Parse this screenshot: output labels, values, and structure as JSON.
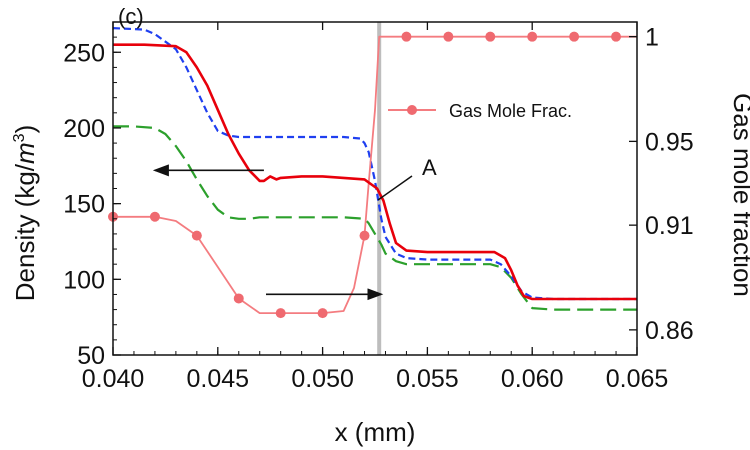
{
  "chart_data": {
    "type": "line",
    "panel_label": "(c)",
    "xlabel": "x (mm)",
    "ylabel_prefix": "Density (kg/",
    "ylabel_unit": "m",
    "ylabel_exp": "3",
    "ylabel_suffix": ")",
    "y2label": "Gas mole fraction",
    "xlim": [
      0.04,
      0.065
    ],
    "ylim": [
      50,
      270
    ],
    "y2lim": [
      0.848,
      1.007
    ],
    "x_ticks": [
      "0.040",
      "0.045",
      "0.050",
      "0.055",
      "0.060",
      "0.065"
    ],
    "y_ticks": [
      "50",
      "100",
      "150",
      "200",
      "250"
    ],
    "y2_ticks": [
      "0.86",
      "0.91",
      "0.95",
      "1"
    ],
    "grid": false,
    "legend": {
      "position": "upper-right",
      "entries": [
        "Gas Mole Frac."
      ]
    },
    "annotation_label": "A",
    "vertical_line_x": 0.0527,
    "series": [
      {
        "style": "solid",
        "color": "#e8000b",
        "axis": "left",
        "x": [
          0.04,
          0.0415,
          0.043,
          0.0435,
          0.044,
          0.0445,
          0.045,
          0.0455,
          0.046,
          0.0465,
          0.047,
          0.0472,
          0.0475,
          0.0478,
          0.048,
          0.049,
          0.05,
          0.051,
          0.052,
          0.0523,
          0.0526,
          0.0529,
          0.0532,
          0.0535,
          0.054,
          0.055,
          0.056,
          0.057,
          0.0582,
          0.0587,
          0.059,
          0.0593,
          0.0596,
          0.06,
          0.061,
          0.062,
          0.063,
          0.064,
          0.065
        ],
        "y": [
          255,
          255,
          254,
          250,
          240,
          228,
          212,
          196,
          183,
          172,
          165,
          165,
          168,
          166,
          167,
          168,
          168,
          167,
          166,
          163,
          160,
          152,
          137,
          124,
          119,
          118,
          118,
          118,
          118,
          114,
          106,
          96,
          89,
          87,
          87,
          87,
          87,
          87,
          87
        ]
      },
      {
        "style": "dash",
        "color": "#1f3ff0",
        "axis": "left",
        "x": [
          0.04,
          0.0415,
          0.042,
          0.043,
          0.0435,
          0.044,
          0.0445,
          0.045,
          0.0455,
          0.046,
          0.0465,
          0.047,
          0.048,
          0.049,
          0.05,
          0.051,
          0.0518,
          0.052,
          0.0522,
          0.0525,
          0.0528,
          0.053,
          0.0535,
          0.054,
          0.055,
          0.056,
          0.057,
          0.058,
          0.0585,
          0.059,
          0.0595,
          0.06,
          0.061,
          0.062,
          0.063,
          0.064,
          0.065
        ],
        "y": [
          266,
          265,
          262,
          252,
          240,
          225,
          210,
          198,
          195,
          194,
          194,
          194,
          194,
          194,
          194,
          194,
          193,
          190,
          184,
          165,
          140,
          128,
          117,
          114,
          113,
          113,
          113,
          113,
          110,
          102,
          92,
          88,
          87,
          87,
          87,
          87,
          87
        ]
      },
      {
        "style": "longdash",
        "color": "#2ca02c",
        "axis": "left",
        "x": [
          0.04,
          0.041,
          0.042,
          0.0425,
          0.043,
          0.0435,
          0.044,
          0.0445,
          0.045,
          0.0455,
          0.046,
          0.0465,
          0.047,
          0.048,
          0.049,
          0.05,
          0.051,
          0.052,
          0.0522,
          0.0525,
          0.0528,
          0.053,
          0.0535,
          0.054,
          0.055,
          0.056,
          0.057,
          0.058,
          0.0585,
          0.059,
          0.0595,
          0.06,
          0.061,
          0.062,
          0.063,
          0.064,
          0.065
        ],
        "y": [
          201,
          201,
          200,
          196,
          188,
          178,
          166,
          155,
          146,
          141,
          140,
          140,
          141,
          141,
          141,
          141,
          141,
          140,
          137,
          130,
          123,
          117,
          112,
          110,
          110,
          110,
          110,
          110,
          108,
          101,
          90,
          81,
          80,
          80,
          80,
          80,
          80
        ]
      },
      {
        "name": "Gas Mole Frac.",
        "style": "solid-markers",
        "color": "#f47c80",
        "axis": "right",
        "x": [
          0.04,
          0.042,
          0.043,
          0.044,
          0.045,
          0.046,
          0.047,
          0.048,
          0.049,
          0.05,
          0.051,
          0.0515,
          0.052,
          0.0522,
          0.0525,
          0.0527,
          0.053,
          0.054,
          0.056,
          0.058,
          0.06,
          0.062,
          0.064,
          0.065
        ],
        "y": [
          0.914,
          0.914,
          0.912,
          0.905,
          0.89,
          0.875,
          0.868,
          0.868,
          0.868,
          0.868,
          0.869,
          0.88,
          0.905,
          0.93,
          0.965,
          1.0,
          1.0,
          1.0,
          1.0,
          1.0,
          1.0,
          1.0,
          1.0,
          1.0
        ],
        "marker_x": [
          0.04,
          0.042,
          0.044,
          0.046,
          0.048,
          0.05,
          0.052,
          0.054,
          0.056,
          0.058,
          0.06,
          0.062,
          0.064
        ],
        "marker_y": [
          0.914,
          0.914,
          0.905,
          0.875,
          0.868,
          0.868,
          0.905,
          1.0,
          1.0,
          1.0,
          1.0,
          1.0,
          1.0
        ]
      }
    ],
    "arrows": [
      {
        "from": [
          0.0472,
          172
        ],
        "to": [
          0.042,
          172
        ],
        "axis": "left",
        "color": "#111111"
      },
      {
        "from": [
          0.0473,
          0.877
        ],
        "to": [
          0.0528,
          0.877
        ],
        "axis": "right",
        "color": "#111111"
      }
    ]
  }
}
